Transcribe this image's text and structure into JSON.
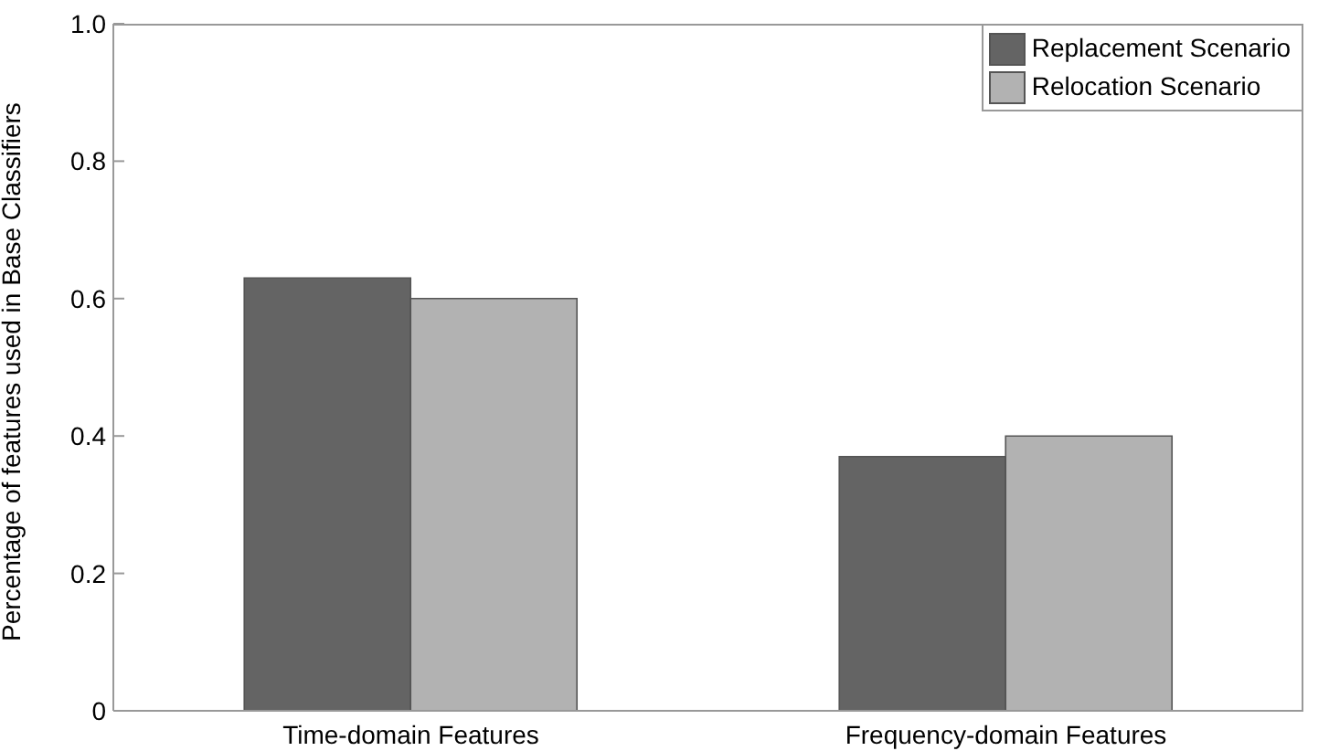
{
  "chart_data": {
    "type": "bar",
    "categories": [
      "Time-domain Features",
      "Frequency-domain Features"
    ],
    "series": [
      {
        "name": "Replacement Scenario",
        "color": "#646464",
        "values": [
          0.63,
          0.37
        ]
      },
      {
        "name": "Relocation Scenario",
        "color": "#b2b2b2",
        "values": [
          0.6,
          0.4
        ]
      }
    ],
    "ylabel": "Percentage of features used in Base Classifiers",
    "ylim": [
      0,
      1
    ],
    "yticks": [
      0,
      0.2,
      0.4,
      0.6,
      0.8,
      {
        "value": 1,
        "label": "1.0"
      }
    ],
    "legend": "top right"
  }
}
